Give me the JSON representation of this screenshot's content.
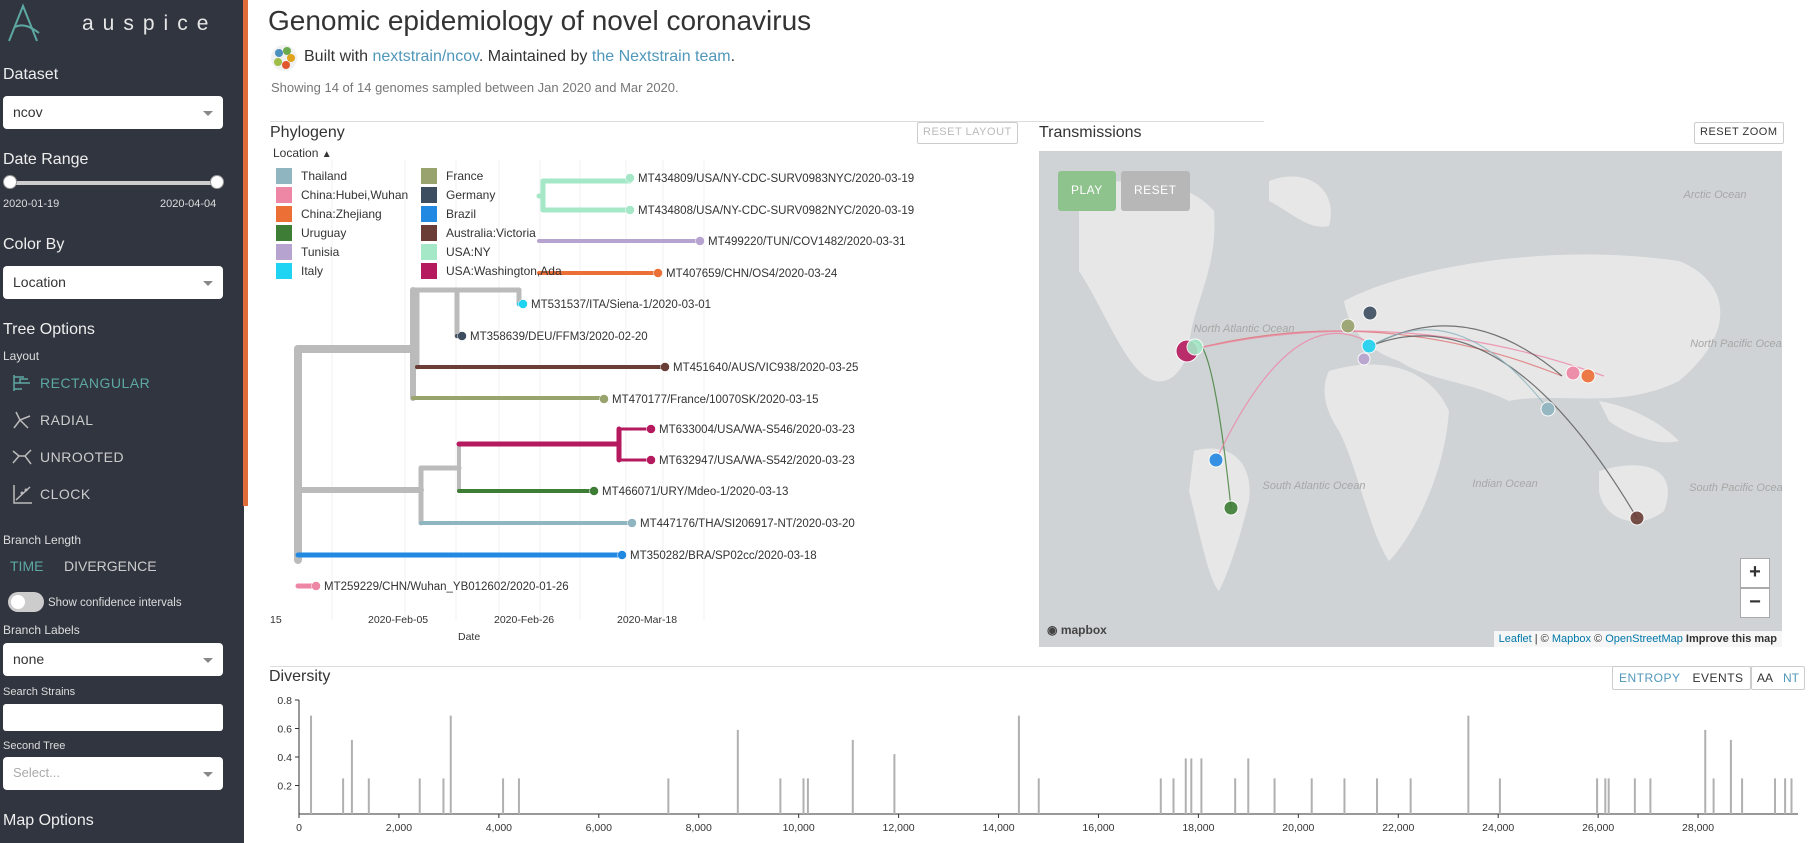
{
  "sidebar": {
    "logo_text": "auspice",
    "dataset": {
      "label": "Dataset",
      "value": "ncov"
    },
    "date_range": {
      "label": "Date Range",
      "start": "2020-01-19",
      "end": "2020-04-04"
    },
    "color_by": {
      "label": "Color By",
      "value": "Location"
    },
    "tree_options": {
      "label": "Tree Options",
      "layout_label": "Layout",
      "layouts": [
        "RECTANGULAR",
        "RADIAL",
        "UNROOTED",
        "CLOCK"
      ],
      "active_layout": "RECTANGULAR"
    },
    "branch_length": {
      "label": "Branch Length",
      "time": "TIME",
      "divergence": "DIVERGENCE",
      "active": "TIME"
    },
    "confidence_label": "Show confidence intervals",
    "branch_labels": {
      "label": "Branch Labels",
      "value": "none"
    },
    "search_strains_label": "Search Strains",
    "second_tree": {
      "label": "Second Tree",
      "placeholder": "Select..."
    },
    "map_options_label": "Map Options"
  },
  "header": {
    "title": "Genomic epidemiology of novel coronavirus",
    "built_with": "Built with",
    "build_link": "nextstrain/ncov",
    "maintained_by": ". Maintained by",
    "team_link": "the Nextstrain team",
    "period": ".",
    "summary": "Showing 14 of 14 genomes sampled between Jan 2020 and Mar 2020."
  },
  "phylogeny": {
    "title": "Phylogeny",
    "reset_layout": "RESET LAYOUT",
    "legend_title": "Location",
    "legend": [
      {
        "label": "Thailand",
        "color": "#8fb5c1"
      },
      {
        "label": "China:Hubei,Wuhan",
        "color": "#ee86a5"
      },
      {
        "label": "China:Zhejiang",
        "color": "#ec6f36"
      },
      {
        "label": "Uruguay",
        "color": "#3d7d35"
      },
      {
        "label": "Tunisia",
        "color": "#b7a3cf"
      },
      {
        "label": "Italy",
        "color": "#1ed4f2"
      },
      {
        "label": "France",
        "color": "#98a36e"
      },
      {
        "label": "Germany",
        "color": "#3d4e60"
      },
      {
        "label": "Brazil",
        "color": "#2289e2"
      },
      {
        "label": "Australia:Victoria",
        "color": "#6a3d36"
      },
      {
        "label": "USA:NY",
        "color": "#a5e8c8"
      },
      {
        "label": "USA:Washington,Ada",
        "color": "#b5195e"
      }
    ],
    "tips": [
      {
        "name": "MT434809/USA/NY-CDC-SURV0983NYC/2020-03-19",
        "color": "#a5e8c8"
      },
      {
        "name": "MT434808/USA/NY-CDC-SURV0982NYC/2020-03-19",
        "color": "#a5e8c8"
      },
      {
        "name": "MT499220/TUN/COV1482/2020-03-31",
        "color": "#b7a3cf"
      },
      {
        "name": "MT407659/CHN/OS4/2020-03-24",
        "color": "#ec6f36"
      },
      {
        "name": "MT531537/ITA/Siena-1/2020-03-01",
        "color": "#1ed4f2"
      },
      {
        "name": "MT358639/DEU/FFM3/2020-02-20",
        "color": "#3d4e60"
      },
      {
        "name": "MT451640/AUS/VIC938/2020-03-25",
        "color": "#6a3d36"
      },
      {
        "name": "MT470177/France/10070SK/2020-03-15",
        "color": "#98a36e"
      },
      {
        "name": "MT633004/USA/WA-S546/2020-03-23",
        "color": "#b5195e"
      },
      {
        "name": "MT632947/USA/WA-S542/2020-03-23",
        "color": "#b5195e"
      },
      {
        "name": "MT466071/URY/Mdeo-1/2020-03-13",
        "color": "#3d7d35"
      },
      {
        "name": "MT447176/THA/SI206917-NT/2020-03-20",
        "color": "#8fb5c1"
      },
      {
        "name": "MT350282/BRA/SP02cc/2020-03-18",
        "color": "#2289e2"
      },
      {
        "name": "MT259229/CHN/Wuhan_YB012602/2020-01-26",
        "color": "#ee86a5"
      }
    ],
    "x_ticks": [
      "15",
      "2020-Feb-05",
      "2020-Feb-26",
      "2020-Mar-18"
    ],
    "x_label": "Date"
  },
  "transmissions": {
    "title": "Transmissions",
    "reset_zoom": "RESET ZOOM",
    "play": "PLAY",
    "reset": "RESET",
    "zoom_in": "+",
    "zoom_out": "−",
    "mapbox": "mapbox",
    "attribution": {
      "leaflet": "Leaflet",
      "sep1": " | © ",
      "mapbox": "Mapbox",
      "sep2": " © ",
      "osm": "OpenStreetMap",
      "improve": "Improve this map"
    },
    "ocean_labels": [
      "North Atlantic Ocean",
      "South Atlantic Ocean",
      "Indian Ocean",
      "North Pacific Ocean",
      "South Pacific Ocean",
      "Arctic Ocean"
    ]
  },
  "diversity": {
    "title": "Diversity",
    "entropy": "ENTROPY",
    "events": "EVENTS",
    "aa": "AA",
    "nt": "NT",
    "active_mode": "ENTROPY",
    "active_type": "NT"
  },
  "chart_data": {
    "type": "bar",
    "title": "",
    "xlabel": "",
    "ylabel": "",
    "xlim": [
      0,
      30000
    ],
    "ylim": [
      0,
      0.8
    ],
    "x_ticks": [
      0,
      2000,
      4000,
      6000,
      8000,
      10000,
      12000,
      14000,
      16000,
      18000,
      20000,
      22000,
      24000,
      26000,
      28000
    ],
    "y_ticks": [
      0.2,
      0.4,
      0.6,
      0.8
    ],
    "x_tick_labels": [
      "0",
      "2,000",
      "4,000",
      "6,000",
      "8,000",
      "10,000",
      "12,000",
      "14,000",
      "16,000",
      "18,000",
      "20,000",
      "22,000",
      "24,000",
      "26,000",
      "28,000"
    ],
    "y_tick_labels": [
      "0.2",
      "0.4",
      "0.6",
      "0.8"
    ],
    "x": [
      241,
      883,
      1059,
      1397,
      2416,
      2891,
      3037,
      4084,
      4402,
      7392,
      8782,
      9634,
      10097,
      10185,
      11083,
      11916,
      14408,
      14805,
      17247,
      17502,
      17747,
      17858,
      18060,
      18736,
      18998,
      19524,
      20268,
      20923,
      21575,
      22248,
      23403,
      24034,
      25979,
      26144,
      26211,
      26735,
      27046,
      28144,
      28311,
      28657,
      28881,
      29540,
      29742,
      29870
    ],
    "values": [
      0.69,
      0.25,
      0.52,
      0.25,
      0.25,
      0.25,
      0.69,
      0.25,
      0.25,
      0.25,
      0.59,
      0.25,
      0.25,
      0.25,
      0.52,
      0.42,
      0.69,
      0.25,
      0.25,
      0.25,
      0.39,
      0.39,
      0.39,
      0.25,
      0.39,
      0.25,
      0.25,
      0.25,
      0.25,
      0.25,
      0.69,
      0.25,
      0.25,
      0.25,
      0.25,
      0.25,
      0.25,
      0.59,
      0.25,
      0.52,
      0.25,
      0.25,
      0.25,
      0.25
    ]
  }
}
